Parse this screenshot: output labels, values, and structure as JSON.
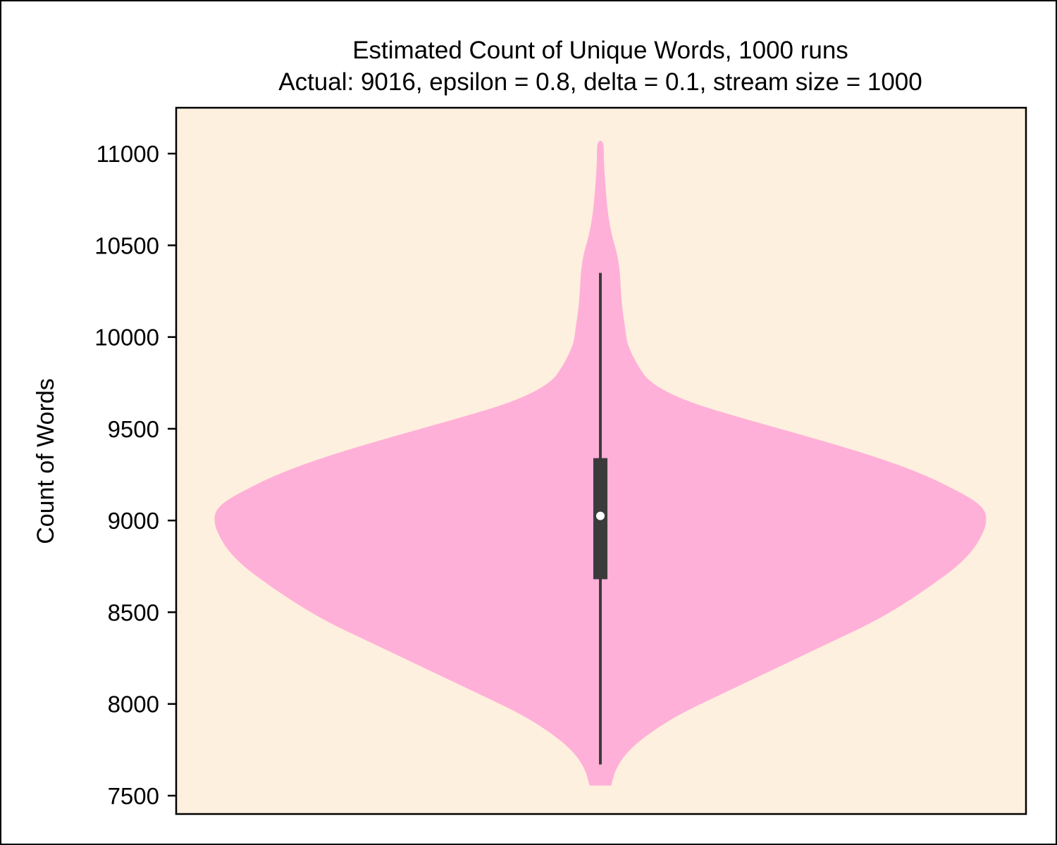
{
  "chart_data": {
    "type": "violin",
    "title": "Estimated Count of Unique Words, 1000 runs",
    "subtitle": "Actual: 9016, epsilon = 0.8, delta = 0.1, stream size = 1000",
    "xlabel": "",
    "ylabel": "Count of Words",
    "ylim": [
      7400,
      11250
    ],
    "yticks": [
      7500,
      8000,
      8500,
      9000,
      9500,
      10000,
      10500,
      11000
    ],
    "grid": false,
    "colors": {
      "plot_background": "#fef0df",
      "violin_fill": "#ffb0d8",
      "box": "#3b3b3b",
      "median_marker": "#ffffff"
    },
    "summary": {
      "min": 7670,
      "q1": 8680,
      "median": 9025,
      "q3": 9340,
      "whisker_high": 10350,
      "max": 11070,
      "violin_bottom": 7555
    },
    "density_profile": {
      "y": [
        7555,
        7650,
        7750,
        7850,
        7950,
        8050,
        8150,
        8250,
        8350,
        8450,
        8550,
        8650,
        8750,
        8850,
        8950,
        9000,
        9050,
        9100,
        9150,
        9250,
        9350,
        9450,
        9550,
        9650,
        9750,
        9850,
        9950,
        10000,
        10050,
        10150,
        10250,
        10350,
        10450,
        10550,
        10650,
        10750,
        10850,
        10950,
        11070
      ],
      "half_width": [
        0.028,
        0.04,
        0.074,
        0.133,
        0.21,
        0.31,
        0.41,
        0.51,
        0.61,
        0.71,
        0.79,
        0.86,
        0.925,
        0.97,
        0.995,
        1.0,
        0.997,
        0.975,
        0.935,
        0.84,
        0.71,
        0.55,
        0.38,
        0.22,
        0.128,
        0.095,
        0.072,
        0.067,
        0.064,
        0.057,
        0.053,
        0.051,
        0.044,
        0.03,
        0.021,
        0.016,
        0.012,
        0.009,
        0.009
      ]
    }
  }
}
